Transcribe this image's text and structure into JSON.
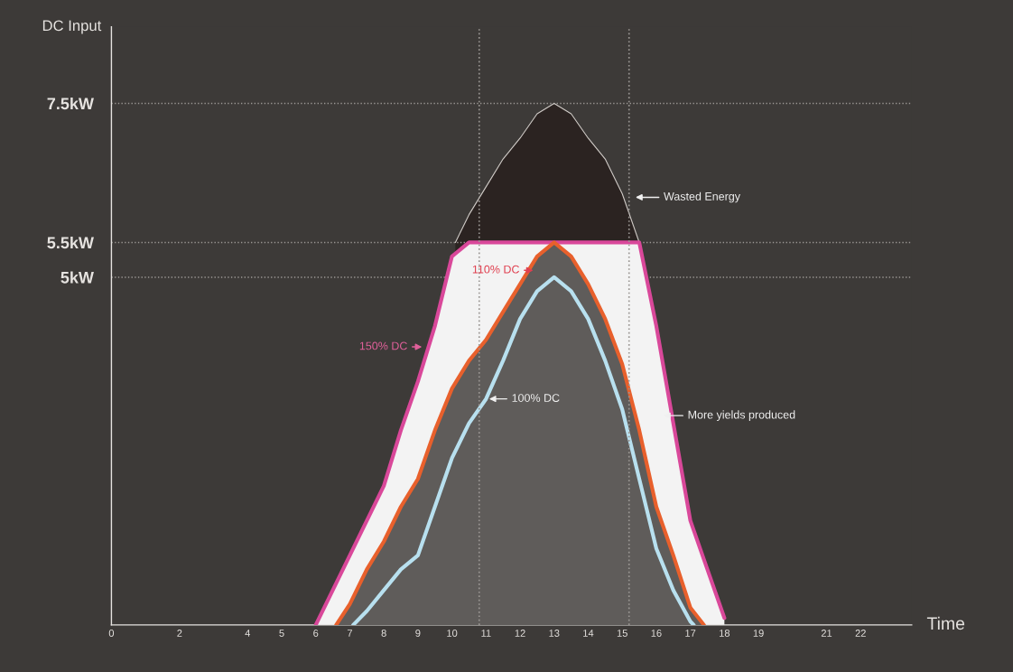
{
  "chart_data": {
    "type": "line",
    "xlabel": "Time",
    "ylabel": "DC Input",
    "xlim": [
      0,
      23.5
    ],
    "ylim": [
      0,
      8.6
    ],
    "xticks": [
      0,
      2,
      4,
      5,
      6,
      7,
      8,
      9,
      10,
      11,
      12,
      13,
      14,
      15,
      16,
      17,
      18,
      19,
      21,
      22
    ],
    "yticks": [
      {
        "value": 5,
        "label": "5kW"
      },
      {
        "value": 5.5,
        "label": "5.5kW"
      },
      {
        "value": 7.5,
        "label": "7.5kW"
      }
    ],
    "grid": "y",
    "line_style": "solid",
    "ref_lines": [
      {
        "axis": "x",
        "value": 10.8,
        "line_style": "dotted",
        "color": "#9a9693"
      },
      {
        "axis": "x",
        "value": 15.2,
        "line_style": "dotted",
        "color": "#9a9693"
      }
    ],
    "series": [
      {
        "type": "area",
        "color": "#2b2321",
        "x": [
          10.1,
          10.5,
          11,
          11.5,
          12,
          12.5,
          13,
          13.5,
          14,
          14.5,
          15,
          15.5
        ],
        "values": [
          5.5,
          5.9,
          6.3,
          6.7,
          7.0,
          7.35,
          7.5,
          7.35,
          7.0,
          6.7,
          6.2,
          5.5
        ]
      },
      {
        "type": "area",
        "color": "#d9489a",
        "x": [
          6,
          6.5,
          7,
          7.5,
          8,
          8.5,
          9,
          9.5,
          10,
          10.5,
          11,
          11.5,
          12,
          12.5,
          13,
          13.5,
          14,
          14.5,
          15,
          15.5,
          16,
          16.5,
          17,
          17.5,
          18
        ],
        "values": [
          0,
          0.5,
          1.0,
          1.5,
          2.0,
          2.8,
          3.5,
          4.3,
          5.3,
          5.5,
          5.5,
          5.5,
          5.5,
          5.5,
          5.5,
          5.5,
          5.5,
          5.5,
          5.5,
          5.5,
          4.3,
          2.9,
          1.5,
          0.8,
          0.1
        ]
      },
      {
        "type": "area",
        "color": "#e8602c",
        "x": [
          6.6,
          7,
          7.5,
          8,
          8.5,
          9,
          9.5,
          10,
          10.5,
          11,
          11.5,
          12,
          12.5,
          13,
          13.5,
          14,
          14.5,
          15,
          15.5,
          16,
          16.5,
          17,
          17.4
        ],
        "values": [
          0,
          0.3,
          0.8,
          1.2,
          1.7,
          2.1,
          2.8,
          3.4,
          3.8,
          4.1,
          4.5,
          4.9,
          5.3,
          5.5,
          5.3,
          4.9,
          4.4,
          3.75,
          2.8,
          1.7,
          1.0,
          0.25,
          0
        ]
      },
      {
        "color": "#b8e0ef",
        "x": [
          7.1,
          7.5,
          8,
          8.5,
          9,
          9.5,
          10,
          10.5,
          11,
          11.5,
          12,
          12.5,
          13,
          13.5,
          14,
          14.5,
          15,
          15.5,
          16,
          16.5,
          17,
          17.1
        ],
        "values": [
          0,
          0.2,
          0.5,
          0.8,
          1.0,
          1.7,
          2.4,
          2.9,
          3.25,
          3.8,
          4.4,
          4.8,
          5.0,
          4.8,
          4.4,
          3.8,
          3.1,
          2.1,
          1.1,
          0.5,
          0.05,
          0
        ]
      }
    ],
    "annotations": [
      "Wasted Energy",
      "150% DC",
      "110% DC",
      "100% DC",
      "More yields produced"
    ]
  }
}
